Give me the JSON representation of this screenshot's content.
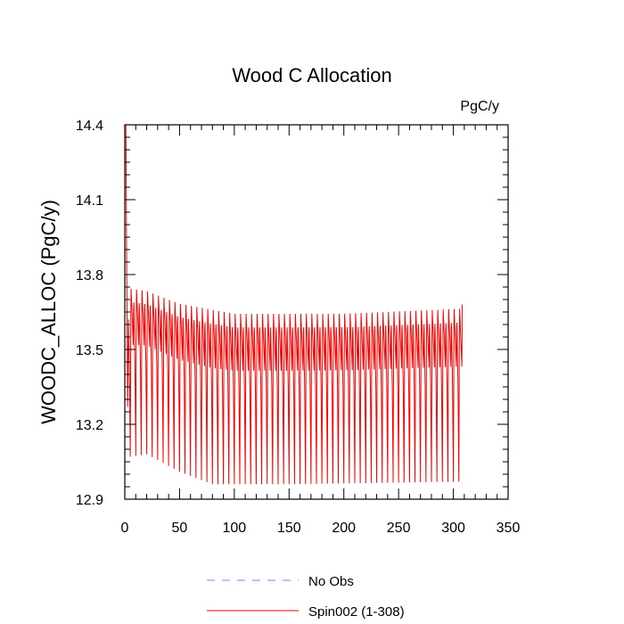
{
  "chart_data": {
    "type": "line",
    "title": "Wood C Allocation",
    "units_label": "PgC/y",
    "xlabel": "",
    "ylabel": "WOODC_ALLOC  (PgC/y)",
    "xlim": [
      0,
      350
    ],
    "ylim": [
      12.9,
      14.4
    ],
    "x_ticks": [
      0,
      50,
      100,
      150,
      200,
      250,
      300,
      350
    ],
    "y_ticks": [
      12.9,
      13.2,
      13.5,
      13.8,
      14.1,
      14.4
    ],
    "x_tick_labels": [
      "0",
      "50",
      "100",
      "150",
      "200",
      "250",
      "300",
      "350"
    ],
    "y_tick_labels": [
      "12.9",
      "13.2",
      "13.5",
      "13.8",
      "14.1",
      "14.4"
    ],
    "series": [
      {
        "name": "No Obs",
        "color": "#7f7fff",
        "dash": "dashed",
        "values": []
      },
      {
        "name": "Spin002 (1-308)",
        "color": "#ff0000",
        "dash": "solid",
        "x_range": [
          1,
          308
        ],
        "cycle_length_years": 5,
        "first_value": 14.4,
        "cycle_min_anchors": [
          [
            5,
            13.07
          ],
          [
            20,
            13.08
          ],
          [
            50,
            13.01
          ],
          [
            80,
            12.96
          ],
          [
            150,
            12.96
          ],
          [
            305,
            12.97
          ]
        ],
        "cycle_max_anchors": [
          [
            5,
            13.76
          ],
          [
            20,
            13.75
          ],
          [
            50,
            13.7
          ],
          [
            100,
            13.66
          ],
          [
            200,
            13.66
          ],
          [
            305,
            13.68
          ]
        ],
        "description_points": [
          [
            1,
            14.4
          ],
          [
            3,
            13.27
          ],
          [
            6,
            13.76
          ],
          [
            8,
            13.07
          ],
          [
            100,
            13.66
          ],
          [
            300,
            13.68
          ],
          [
            308,
            13.68
          ]
        ]
      }
    ],
    "legend": "bottom-center"
  }
}
